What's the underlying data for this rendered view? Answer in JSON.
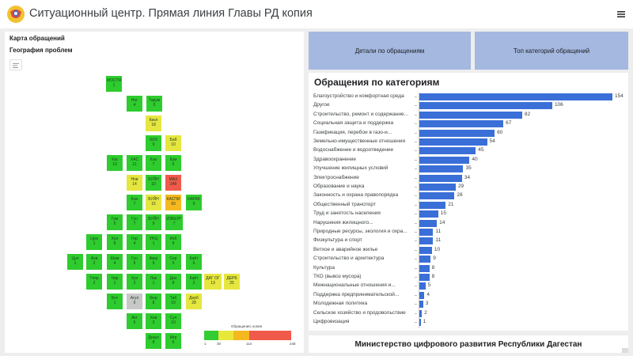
{
  "header": {
    "title": "Ситуационный центр. Прямая линия Главы РД копия",
    "logo_icon": "dagestan-emblem-icon",
    "menu_icon": "hamburger-menu-icon"
  },
  "map": {
    "title": "Карта обращений",
    "subtitle": "География проблем",
    "legend_icon": "legend-icon",
    "colorbar": {
      "title": "Обращения, копия",
      "ticks": [
        "1",
        "30",
        "114",
        "248"
      ],
      "colors": [
        "#33cc33",
        "#e8e83a",
        "#f5b820",
        "#f05a4a"
      ]
    },
    "cells": [
      {
        "code": "КЮСТЯ",
        "value": "1",
        "color": "#2ecc2e"
      },
      {
        "code": "Ног",
        "value": "4",
        "color": "#2ecc2e"
      },
      {
        "code": "Тарум",
        "value": "5",
        "color": "#2ecc2e"
      },
      {
        "code": "Кизл",
        "value": "18",
        "color": "#e6e640"
      },
      {
        "code": "КИЗ",
        "value": "9",
        "color": "#2ecc2e"
      },
      {
        "code": "Баб",
        "value": "10",
        "color": "#e6e640"
      },
      {
        "code": "Хас",
        "value": "10",
        "color": "#2ecc2e"
      },
      {
        "code": "ХАС",
        "value": "11",
        "color": "#2ecc2e"
      },
      {
        "code": "Кзю",
        "value": "7",
        "color": "#2ecc2e"
      },
      {
        "code": "Кум",
        "value": "6",
        "color": "#2ecc2e"
      },
      {
        "code": "Нов",
        "value": "14",
        "color": "#e6e640"
      },
      {
        "code": "БУЙН",
        "value": "10",
        "color": "#2ecc2e"
      },
      {
        "code": "МАХ",
        "value": "248",
        "color": "#f05a4a"
      },
      {
        "code": "Кзю",
        "value": "7",
        "color": "#2ecc2e"
      },
      {
        "code": "БУЙН",
        "value": "15",
        "color": "#e6e640"
      },
      {
        "code": "КАСПИ",
        "value": "93",
        "color": "#f5b820"
      },
      {
        "code": "КАРАБ",
        "value": "9",
        "color": "#2ecc2e"
      },
      {
        "code": "Гум",
        "value": "5",
        "color": "#2ecc2e"
      },
      {
        "code": "Гун",
        "value": "7",
        "color": "#2ecc2e"
      },
      {
        "code": "БУЙН",
        "value": "9",
        "color": "#2ecc2e"
      },
      {
        "code": "ИЗБЕРГ",
        "value": "7",
        "color": "#2ecc2e"
      },
      {
        "code": "Цум",
        "value": "1",
        "color": "#2ecc2e"
      },
      {
        "code": "Хун",
        "value": "6",
        "color": "#2ecc2e"
      },
      {
        "code": "Гер",
        "value": "4",
        "color": "#2ecc2e"
      },
      {
        "code": "УНЦ",
        "value": "1",
        "color": "#2ecc2e"
      },
      {
        "code": "Изб",
        "value": "9",
        "color": "#2ecc2e"
      },
      {
        "code": "Цун",
        "value": "1",
        "color": "#2ecc2e"
      },
      {
        "code": "Ахв",
        "value": "2",
        "color": "#2ecc2e"
      },
      {
        "code": "Шам",
        "value": "4",
        "color": "#2ecc2e"
      },
      {
        "code": "Гун",
        "value": "6",
        "color": "#2ecc2e"
      },
      {
        "code": "Аккр",
        "value": "5",
        "color": "#2ecc2e"
      },
      {
        "code": "Сер",
        "value": "5",
        "color": "#2ecc2e"
      },
      {
        "code": "Кайт",
        "value": "6",
        "color": "#2ecc2e"
      },
      {
        "code": "Тляр",
        "value": "2",
        "color": "#2ecc2e"
      },
      {
        "code": "Чар",
        "value": "1",
        "color": "#2ecc2e"
      },
      {
        "code": "Хун",
        "value": "2",
        "color": "#2ecc2e"
      },
      {
        "code": "Лак",
        "value": "1",
        "color": "#2ecc2e"
      },
      {
        "code": "Дах",
        "value": "8",
        "color": "#2ecc2e"
      },
      {
        "code": "Кайт",
        "value": "2",
        "color": "#2ecc2e"
      },
      {
        "code": "ДАГ ОГ",
        "value": "13",
        "color": "#e6e640"
      },
      {
        "code": "ДЕРБ",
        "value": "25",
        "color": "#e6e640"
      },
      {
        "code": "Бот",
        "value": "1",
        "color": "#2ecc2e"
      },
      {
        "code": "Агул",
        "value": "0",
        "color": "#c8c8c8"
      },
      {
        "code": "Кюр",
        "value": "8",
        "color": "#2ecc2e"
      },
      {
        "code": "Таб",
        "value": "10",
        "color": "#2ecc2e"
      },
      {
        "code": "Дерб",
        "value": "28",
        "color": "#e6e640"
      },
      {
        "code": "Акт",
        "value": "5",
        "color": "#2ecc2e"
      },
      {
        "code": "Хив",
        "value": "3",
        "color": "#2ecc2e"
      },
      {
        "code": "Сул",
        "value": "10",
        "color": "#2ecc2e"
      },
      {
        "code": "Докуз",
        "value": "8",
        "color": "#2ecc2e"
      },
      {
        "code": "Мгр",
        "value": "6",
        "color": "#2ecc2e"
      }
    ]
  },
  "buttons": {
    "details": "Детали по обращениям",
    "top": "Топ категорий обращений"
  },
  "chart_data": {
    "type": "bar",
    "title": "Обращения по категориям",
    "orientation": "horizontal",
    "color": "#3a6fd8",
    "categories": [
      "Благоустройство и комфортная среда",
      "Другое",
      "Строительство, ремонт и содержание...",
      "Социальная защита и поддержка",
      "Газификация, перебои в газо-и...",
      "Земельно-имущественные отношения",
      "Водоснабжение и водоотведение",
      "Здравоохранение",
      "Улучшение жилищных условий",
      "Электроснабжение",
      "Образование и наука",
      "Законность и охрана правопорядка",
      "Общественный транспорт",
      "Труд и занятость населения",
      "Нарушения жилищного...",
      "Природные ресурсы, экология и охра...",
      "Физкультура и спорт",
      "Ветхое и аварийное жилье",
      "Строительство и архитектура",
      "Культура",
      "ТКО (вывоз мусора)",
      "Межнациональные отношения и...",
      "Поддержка предпринимательской...",
      "Молодежная политика",
      "Сельское хозяйство и продовольствие",
      "Цифровизация"
    ],
    "values": [
      154,
      106,
      82,
      67,
      60,
      54,
      45,
      40,
      35,
      34,
      29,
      28,
      21,
      15,
      14,
      11,
      11,
      10,
      9,
      8,
      8,
      5,
      4,
      3,
      2,
      1
    ]
  },
  "footer": {
    "text": "Министерство цифрового развития Республики Дагестан"
  }
}
